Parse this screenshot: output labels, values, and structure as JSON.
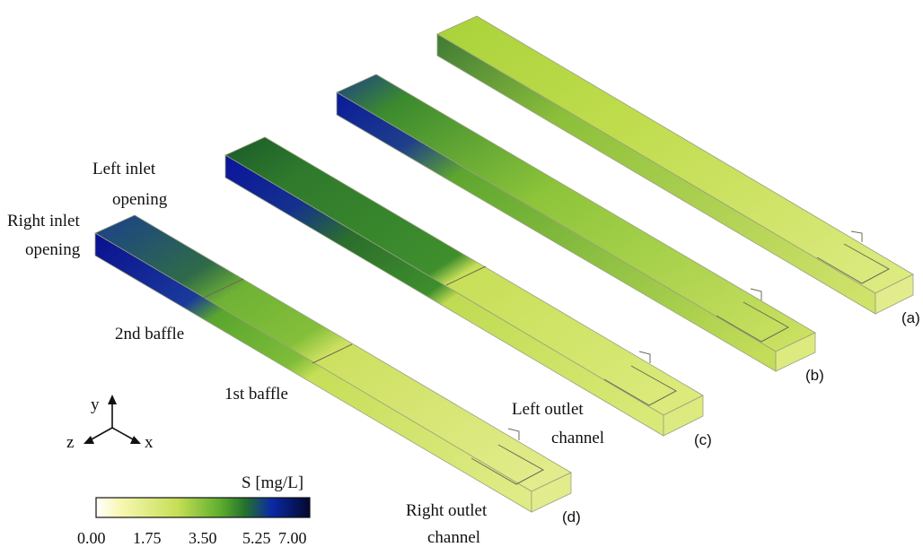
{
  "labels": {
    "left_inlet": [
      "Left inlet",
      "opening"
    ],
    "right_inlet": [
      "Right inlet",
      "opening"
    ],
    "second_baffle": "2nd baffle",
    "first_baffle": "1st baffle",
    "left_outlet": [
      "Left outlet",
      "channel"
    ],
    "right_outlet": [
      "Right outlet",
      "channel"
    ]
  },
  "panels": [
    "(a)",
    "(b)",
    "(c)",
    "(d)"
  ],
  "axes": {
    "y": "y",
    "z": "z",
    "x": "x"
  },
  "colorbar": {
    "title": "S [mg/L]",
    "ticks": [
      "0.00",
      "1.75",
      "3.50",
      "5.25",
      "7.00"
    ],
    "colors": [
      "#ffffff",
      "#f6f7a2",
      "#b5d744",
      "#58a82c",
      "#1f6e2d",
      "#0b1f9c",
      "#040a3a"
    ]
  }
}
